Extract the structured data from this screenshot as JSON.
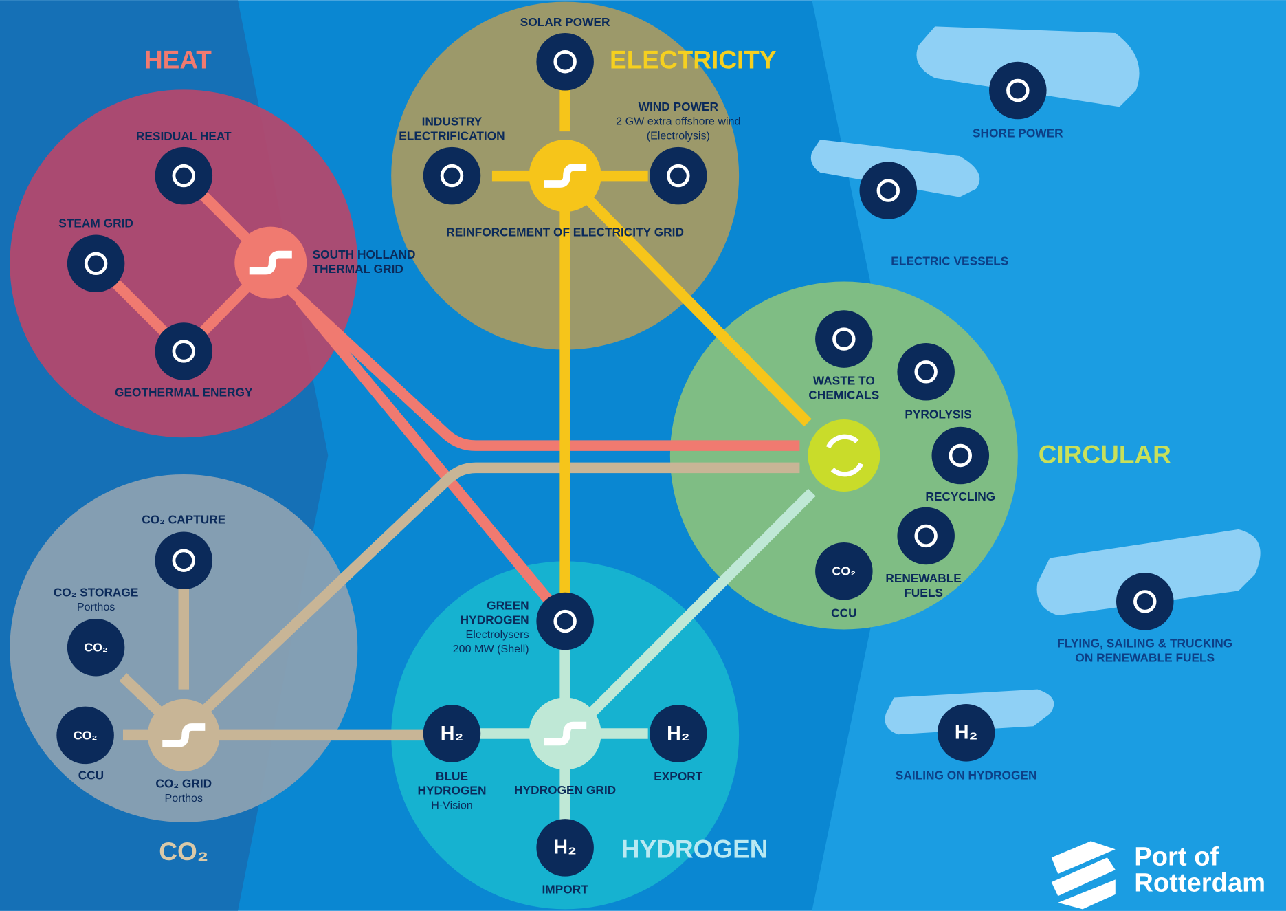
{
  "sections": {
    "heat": "HEAT",
    "electricity": "ELECTRICITY",
    "circular": "CIRCULAR",
    "co2": "CO₂",
    "hydrogen": "HYDROGEN"
  },
  "nodes": [
    {
      "label": [
        "RESIDUAL HEAT"
      ]
    },
    {
      "label": [
        "STEAM GRID"
      ]
    },
    {
      "label": [
        "SOUTH HOLLAND",
        "THERMAL GRID"
      ]
    },
    {
      "label": [
        "GEOTHERMAL ENERGY"
      ]
    },
    {
      "label": [
        "SOLAR POWER"
      ]
    },
    {
      "label": [
        "INDUSTRY",
        "ELECTRIFICATION"
      ]
    },
    {
      "label": [
        "WIND POWER"
      ],
      "sub": [
        "2 GW extra offshore wind",
        "(Electrolysis)"
      ]
    },
    {
      "label": [
        "REINFORCEMENT OF ELECTRICITY GRID"
      ]
    },
    {
      "label": [
        "WASTE TO",
        "CHEMICALS"
      ]
    },
    {
      "label": [
        "PYROLYSIS"
      ]
    },
    {
      "label": [
        "RECYCLING"
      ]
    },
    {
      "label": [
        "RENEWABLE",
        "FUELS"
      ]
    },
    {
      "label": [
        "CCU"
      ],
      "icon": "CO₂"
    },
    {
      "label": [
        "CO₂ CAPTURE"
      ]
    },
    {
      "label": [
        "CO₂ STORAGE"
      ],
      "sub": [
        "Porthos"
      ],
      "icon": "CO₂"
    },
    {
      "label": [
        "CCU"
      ],
      "icon": "CO₂"
    },
    {
      "label": [
        "CO₂ GRID"
      ],
      "sub": [
        "Porthos"
      ]
    },
    {
      "label": [
        "GREEN",
        "HYDROGEN"
      ],
      "sub": [
        "Electrolysers",
        "200 MW (Shell)"
      ]
    },
    {
      "label": [
        "BLUE",
        "HYDROGEN"
      ],
      "sub": [
        "H-Vision"
      ],
      "icon": "H₂"
    },
    {
      "label": [
        "HYDROGEN GRID"
      ]
    },
    {
      "label": [
        "EXPORT"
      ],
      "icon": "H₂"
    },
    {
      "label": [
        "IMPORT"
      ],
      "icon": "H₂"
    }
  ],
  "vessels": [
    {
      "label": [
        "SHORE POWER"
      ]
    },
    {
      "label": [
        "ELECTRIC VESSELS"
      ]
    },
    {
      "label": [
        "FLYING, SAILING & TRUCKING",
        "ON RENEWABLE FUELS"
      ]
    },
    {
      "label": [
        "SAILING ON HYDROGEN"
      ],
      "icon": "H₂"
    }
  ],
  "logo": [
    "Port of",
    "Rotterdam"
  ]
}
